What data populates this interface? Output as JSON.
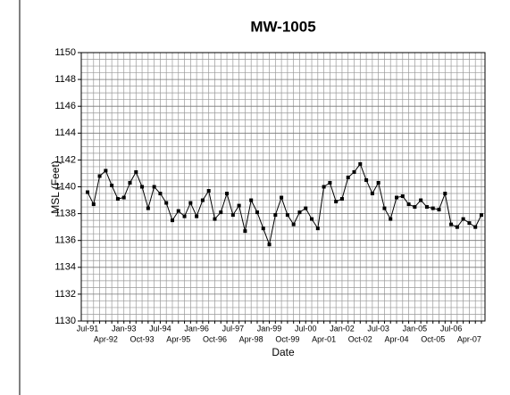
{
  "chart_data": {
    "type": "line",
    "title": "MW-1005",
    "x_label": "Date",
    "y_label": "MSL (Feet)",
    "categories": [
      "Jul-91",
      null,
      null,
      "Apr-92",
      null,
      null,
      "Jan-93",
      null,
      null,
      "Oct-93",
      null,
      null,
      "Jul-94",
      null,
      null,
      "Apr-95",
      null,
      null,
      "Jan-96",
      null,
      null,
      "Oct-96",
      null,
      null,
      "Jul-97",
      null,
      null,
      "Apr-98",
      null,
      null,
      "Jan-99",
      null,
      null,
      "Oct-99",
      null,
      null,
      "Jul-00",
      null,
      null,
      "Apr-01",
      null,
      null,
      "Jan-02",
      null,
      null,
      "Oct-02",
      null,
      null,
      "Jul-03",
      null,
      null,
      "Apr-04",
      null,
      null,
      "Jan-05",
      null,
      null,
      "Oct-05",
      null,
      null,
      "Jul-06",
      null,
      null,
      "Apr-07",
      null,
      null
    ],
    "series": [
      {
        "name": "MW-1005",
        "color": "#000000",
        "values": [
          1139.6,
          1138.7,
          1140.8,
          1141.2,
          1140.1,
          1139.1,
          1139.2,
          1140.3,
          1141.1,
          1140.0,
          1138.4,
          1140.0,
          1139.5,
          1138.8,
          1137.5,
          1138.2,
          1137.8,
          1138.8,
          1137.8,
          1139.0,
          1139.7,
          1137.6,
          1138.1,
          1139.5,
          1137.9,
          1138.6,
          1136.7,
          1139.0,
          1138.1,
          1136.9,
          1135.7,
          1137.9,
          1139.2,
          1137.9,
          1137.2,
          1138.1,
          1138.4,
          1137.6,
          1136.9,
          1140.0,
          1140.3,
          1138.9,
          1139.1,
          1140.7,
          1141.1,
          1141.7,
          1140.5,
          1139.5,
          1140.3,
          1138.4,
          1137.6,
          1139.2,
          1139.3,
          1138.7,
          1138.5,
          1139.0,
          1138.5,
          1138.4,
          1138.3,
          1139.5,
          1137.2,
          1137.0,
          1137.6,
          1137.3,
          1137.0,
          1137.9
        ]
      }
    ],
    "ylim": [
      1130,
      1150
    ],
    "yticks": [
      1130,
      1132,
      1134,
      1136,
      1138,
      1140,
      1142,
      1144,
      1146,
      1148,
      1150
    ],
    "grid": true
  }
}
